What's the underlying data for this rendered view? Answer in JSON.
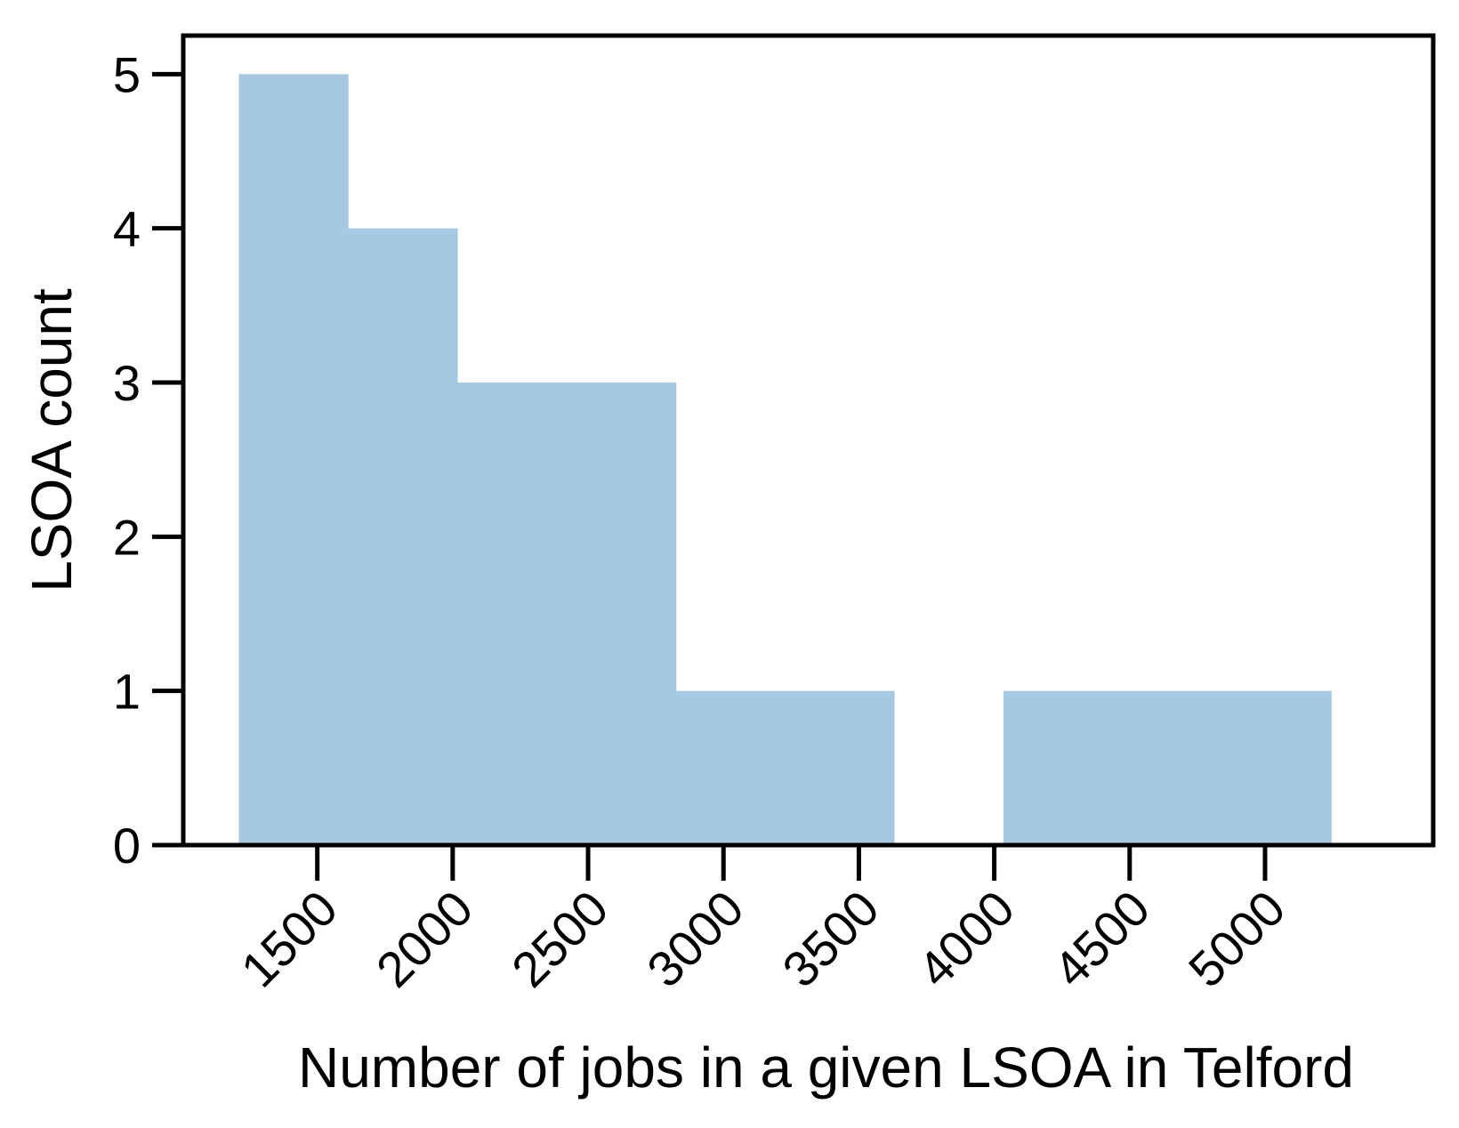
{
  "chart_data": {
    "type": "bar",
    "subtype": "histogram",
    "xlabel": "Number of jobs in a given LSOA in Telford",
    "ylabel": "LSOA count",
    "xlim": [
      1005,
      5621
    ],
    "ylim": [
      0,
      5.25
    ],
    "xticks": [
      1500,
      2000,
      2500,
      3000,
      3500,
      4000,
      4500,
      5000
    ],
    "yticks": [
      0,
      1,
      2,
      3,
      4,
      5
    ],
    "bins": [
      {
        "x0": 1210,
        "x1": 1613,
        "count": 5
      },
      {
        "x0": 1613,
        "x1": 2017,
        "count": 4
      },
      {
        "x0": 2017,
        "x1": 2420,
        "count": 3
      },
      {
        "x0": 2420,
        "x1": 2824,
        "count": 3
      },
      {
        "x0": 2824,
        "x1": 3227,
        "count": 1
      },
      {
        "x0": 3227,
        "x1": 3630,
        "count": 1
      },
      {
        "x0": 3630,
        "x1": 4034,
        "count": 0
      },
      {
        "x0": 4034,
        "x1": 4437,
        "count": 1
      },
      {
        "x0": 4437,
        "x1": 4841,
        "count": 1
      },
      {
        "x0": 4841,
        "x1": 5244,
        "count": 1
      }
    ],
    "bar_color": "#a6c8e0",
    "grid": false,
    "legend": "none"
  }
}
